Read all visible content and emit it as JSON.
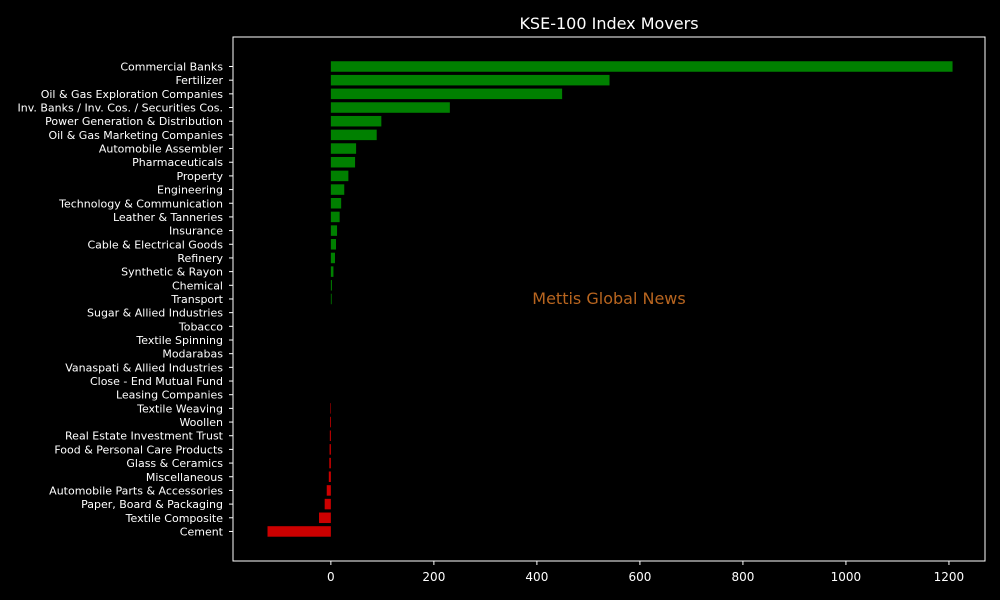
{
  "chart_data": {
    "type": "bar",
    "orientation": "horizontal",
    "title": "KSE-100 Index Movers",
    "watermark": "Mettis Global News",
    "xlabel": "",
    "ylabel": "",
    "xlim": [
      -190,
      1270
    ],
    "xticks": [
      0,
      200,
      400,
      600,
      800,
      1000,
      1200
    ],
    "xtick_labels": [
      "0",
      "200",
      "400",
      "600",
      "800",
      "1000",
      "1200"
    ],
    "grid": false,
    "colors": {
      "positive": "#008000",
      "negative": "#cc0000",
      "background": "#000000",
      "text": "#ffffff",
      "watermark": "#b8651f"
    },
    "categories": [
      "Commercial Banks",
      "Fertilizer",
      "Oil & Gas Exploration Companies",
      "Inv. Banks / Inv. Cos. / Securities Cos.",
      "Power Generation & Distribution",
      "Oil & Gas Marketing Companies",
      "Automobile Assembler",
      "Pharmaceuticals",
      "Property",
      "Engineering",
      "Technology & Communication",
      "Leather & Tanneries",
      "Insurance",
      "Cable & Electrical Goods",
      "Refinery",
      "Synthetic & Rayon",
      "Chemical",
      "Transport",
      "Sugar & Allied Industries",
      "Tobacco",
      "Textile Spinning",
      "Modarabas",
      "Vanaspati & Allied Industries",
      "Close - End Mutual Fund",
      "Leasing Companies",
      "Textile Weaving",
      "Woollen",
      "Real Estate Investment Trust",
      "Food & Personal Care Products",
      "Glass & Ceramics",
      "Miscellaneous",
      "Automobile Parts & Accessories",
      "Paper, Board & Packaging",
      "Textile Composite",
      "Cement"
    ],
    "values": [
      1207,
      541,
      449,
      231,
      98,
      89,
      49,
      47,
      34,
      26,
      20,
      17,
      12,
      10,
      8,
      5,
      2,
      1.5,
      0,
      0,
      0,
      0,
      0,
      0,
      0,
      -1,
      -1.5,
      -2,
      -2.5,
      -3,
      -4,
      -8,
      -12,
      -23,
      -123
    ]
  }
}
